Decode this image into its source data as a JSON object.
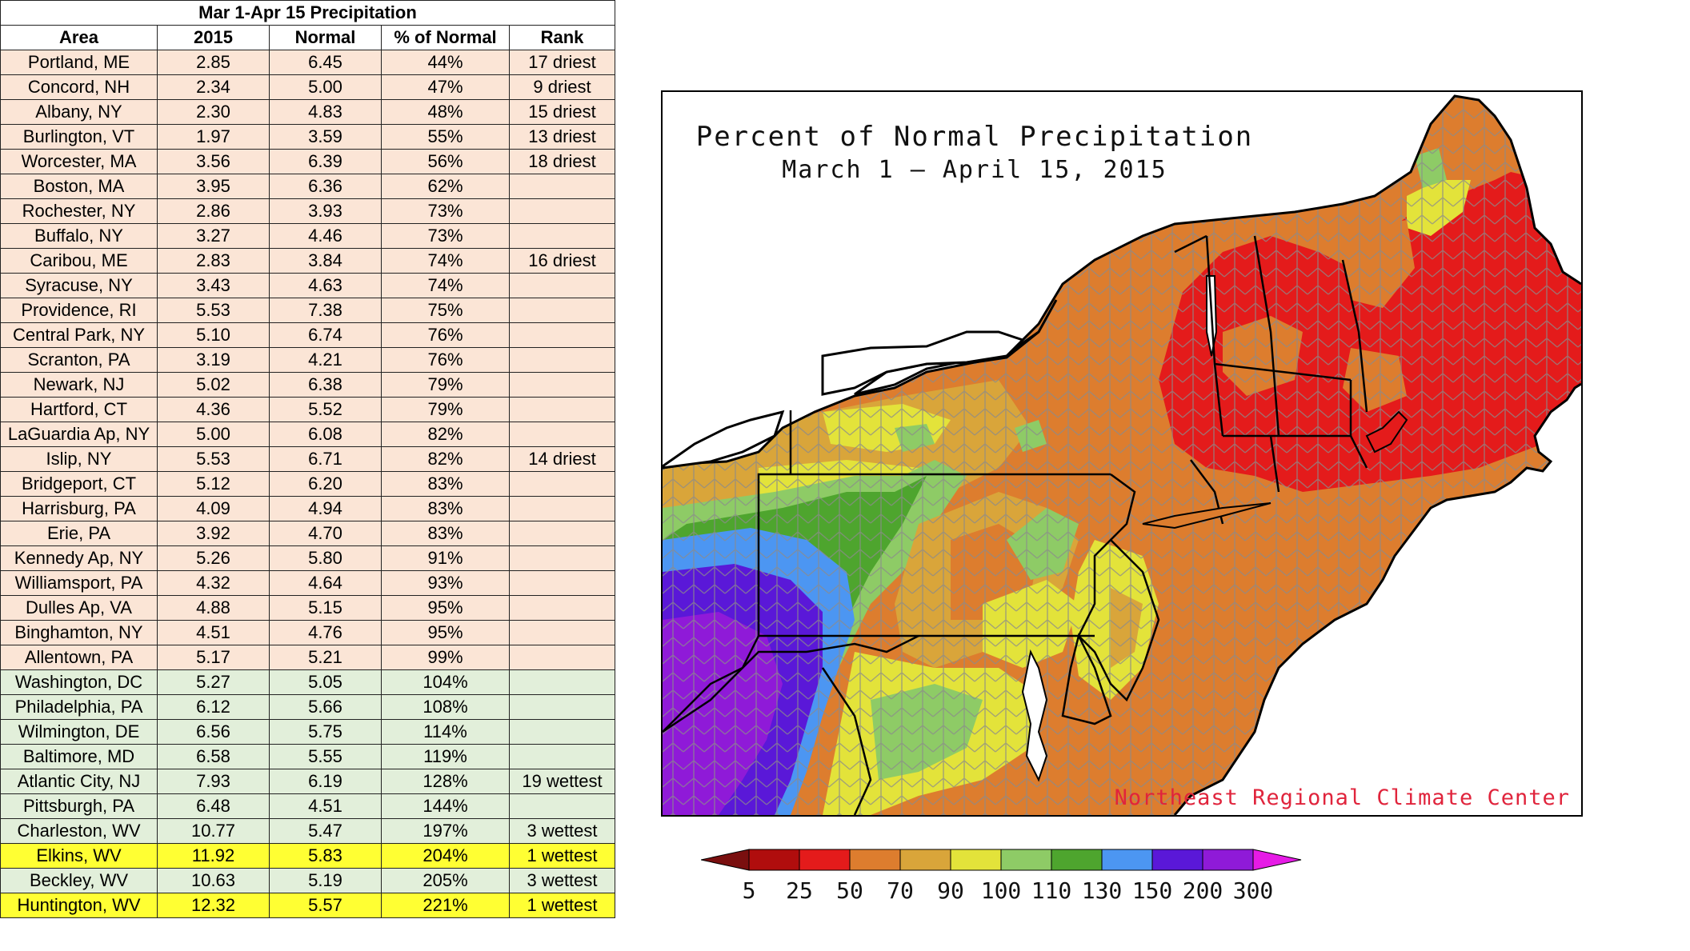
{
  "table": {
    "title": "Mar 1-Apr 15 Precipitation",
    "headers": [
      "Area",
      "2015",
      "Normal",
      "% of Normal",
      "Rank"
    ],
    "rows": [
      {
        "area": "Portland, ME",
        "y2015": "2.85",
        "normal": "6.45",
        "pct": "44%",
        "rank": "17 driest",
        "style": "dry"
      },
      {
        "area": "Concord, NH",
        "y2015": "2.34",
        "normal": "5.00",
        "pct": "47%",
        "rank": "9 driest",
        "style": "dry"
      },
      {
        "area": "Albany, NY",
        "y2015": "2.30",
        "normal": "4.83",
        "pct": "48%",
        "rank": "15 driest",
        "style": "dry"
      },
      {
        "area": "Burlington, VT",
        "y2015": "1.97",
        "normal": "3.59",
        "pct": "55%",
        "rank": "13 driest",
        "style": "dry"
      },
      {
        "area": "Worcester, MA",
        "y2015": "3.56",
        "normal": "6.39",
        "pct": "56%",
        "rank": "18 driest",
        "style": "dry"
      },
      {
        "area": "Boston, MA",
        "y2015": "3.95",
        "normal": "6.36",
        "pct": "62%",
        "rank": "",
        "style": "dry"
      },
      {
        "area": "Rochester, NY",
        "y2015": "2.86",
        "normal": "3.93",
        "pct": "73%",
        "rank": "",
        "style": "dry"
      },
      {
        "area": "Buffalo, NY",
        "y2015": "3.27",
        "normal": "4.46",
        "pct": "73%",
        "rank": "",
        "style": "dry"
      },
      {
        "area": "Caribou, ME",
        "y2015": "2.83",
        "normal": "3.84",
        "pct": "74%",
        "rank": "16 driest",
        "style": "dry"
      },
      {
        "area": "Syracuse, NY",
        "y2015": "3.43",
        "normal": "4.63",
        "pct": "74%",
        "rank": "",
        "style": "dry"
      },
      {
        "area": "Providence, RI",
        "y2015": "5.53",
        "normal": "7.38",
        "pct": "75%",
        "rank": "",
        "style": "dry"
      },
      {
        "area": "Central Park, NY",
        "y2015": "5.10",
        "normal": "6.74",
        "pct": "76%",
        "rank": "",
        "style": "dry"
      },
      {
        "area": "Scranton, PA",
        "y2015": "3.19",
        "normal": "4.21",
        "pct": "76%",
        "rank": "",
        "style": "dry"
      },
      {
        "area": "Newark, NJ",
        "y2015": "5.02",
        "normal": "6.38",
        "pct": "79%",
        "rank": "",
        "style": "dry"
      },
      {
        "area": "Hartford, CT",
        "y2015": "4.36",
        "normal": "5.52",
        "pct": "79%",
        "rank": "",
        "style": "dry"
      },
      {
        "area": "LaGuardia Ap, NY",
        "y2015": "5.00",
        "normal": "6.08",
        "pct": "82%",
        "rank": "",
        "style": "dry"
      },
      {
        "area": "Islip, NY",
        "y2015": "5.53",
        "normal": "6.71",
        "pct": "82%",
        "rank": "14 driest",
        "style": "dry"
      },
      {
        "area": "Bridgeport, CT",
        "y2015": "5.12",
        "normal": "6.20",
        "pct": "83%",
        "rank": "",
        "style": "dry"
      },
      {
        "area": "Harrisburg, PA",
        "y2015": "4.09",
        "normal": "4.94",
        "pct": "83%",
        "rank": "",
        "style": "dry"
      },
      {
        "area": "Erie, PA",
        "y2015": "3.92",
        "normal": "4.70",
        "pct": "83%",
        "rank": "",
        "style": "dry"
      },
      {
        "area": "Kennedy Ap, NY",
        "y2015": "5.26",
        "normal": "5.80",
        "pct": "91%",
        "rank": "",
        "style": "dry"
      },
      {
        "area": "Williamsport, PA",
        "y2015": "4.32",
        "normal": "4.64",
        "pct": "93%",
        "rank": "",
        "style": "dry"
      },
      {
        "area": "Dulles Ap, VA",
        "y2015": "4.88",
        "normal": "5.15",
        "pct": "95%",
        "rank": "",
        "style": "dry"
      },
      {
        "area": "Binghamton, NY",
        "y2015": "4.51",
        "normal": "4.76",
        "pct": "95%",
        "rank": "",
        "style": "dry"
      },
      {
        "area": "Allentown, PA",
        "y2015": "5.17",
        "normal": "5.21",
        "pct": "99%",
        "rank": "",
        "style": "dry"
      },
      {
        "area": "Washington, DC",
        "y2015": "5.27",
        "normal": "5.05",
        "pct": "104%",
        "rank": "",
        "style": "wet"
      },
      {
        "area": "Philadelphia, PA",
        "y2015": "6.12",
        "normal": "5.66",
        "pct": "108%",
        "rank": "",
        "style": "wet"
      },
      {
        "area": "Wilmington, DE",
        "y2015": "6.56",
        "normal": "5.75",
        "pct": "114%",
        "rank": "",
        "style": "wet"
      },
      {
        "area": "Baltimore, MD",
        "y2015": "6.58",
        "normal": "5.55",
        "pct": "119%",
        "rank": "",
        "style": "wet"
      },
      {
        "area": "Atlantic City, NJ",
        "y2015": "7.93",
        "normal": "6.19",
        "pct": "128%",
        "rank": "19 wettest",
        "style": "wet"
      },
      {
        "area": "Pittsburgh, PA",
        "y2015": "6.48",
        "normal": "4.51",
        "pct": "144%",
        "rank": "",
        "style": "wet"
      },
      {
        "area": "Charleston, WV",
        "y2015": "10.77",
        "normal": "5.47",
        "pct": "197%",
        "rank": "3 wettest",
        "style": "wet"
      },
      {
        "area": "Elkins, WV",
        "y2015": "11.92",
        "normal": "5.83",
        "pct": "204%",
        "rank": "1 wettest",
        "style": "hl"
      },
      {
        "area": "Beckley, WV",
        "y2015": "10.63",
        "normal": "5.19",
        "pct": "205%",
        "rank": "3 wettest",
        "style": "wet"
      },
      {
        "area": "Huntington, WV",
        "y2015": "12.32",
        "normal": "5.57",
        "pct": "221%",
        "rank": "1 wettest",
        "style": "hl"
      }
    ],
    "colors": {
      "dry": "#fbe5d6",
      "wet": "#e2efda",
      "highlight": "#ffff33"
    }
  },
  "map": {
    "title": "Percent of Normal Precipitation",
    "subtitle": "March 1 — April 15, 2015",
    "credit": "Northeast Regional Climate Center"
  },
  "legend": {
    "labels": [
      "5",
      "25",
      "50",
      "70",
      "90",
      "100",
      "110",
      "130",
      "150",
      "200",
      "300"
    ],
    "colors": [
      "#7a0f0f",
      "#b00d0d",
      "#e41b1b",
      "#dd7d2e",
      "#d9a53a",
      "#e3e33a",
      "#8ecb66",
      "#4ea52e",
      "#4c96f2",
      "#5a18d8",
      "#8f1ad8",
      "#e61be6"
    ]
  }
}
